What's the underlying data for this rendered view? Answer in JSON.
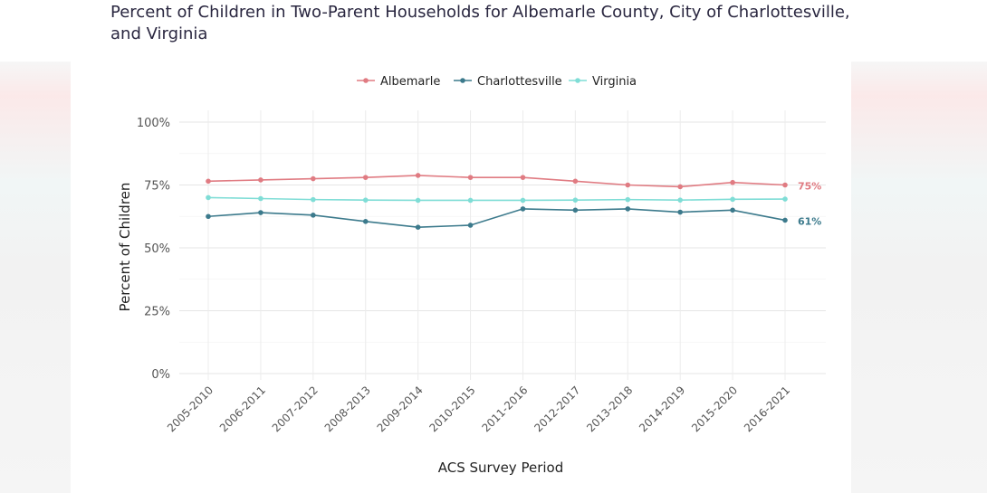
{
  "chart_data": {
    "type": "line",
    "title": "Percent of Children in Two-Parent Households for Albemarle County, City of Charlottesville, and Virginia",
    "xlabel": "ACS Survey Period",
    "ylabel": "Percent of Children",
    "categories": [
      "2005-2010",
      "2006-2011",
      "2007-2012",
      "2008-2013",
      "2009-2014",
      "2010-2015",
      "2011-2016",
      "2012-2017",
      "2013-2018",
      "2014-2019",
      "2015-2020",
      "2016-2021"
    ],
    "ylim": [
      0,
      100
    ],
    "yticks": [
      0,
      25,
      50,
      75,
      100
    ],
    "ytick_labels": [
      "0%",
      "25%",
      "50%",
      "75%",
      "100%"
    ],
    "grid": true,
    "legend_position": "top",
    "series": [
      {
        "name": "Albemarle",
        "color": "#e07b82",
        "values": [
          76.5,
          77,
          77.5,
          78,
          78.8,
          78,
          78,
          76.5,
          75,
          74.3,
          76,
          75
        ],
        "end_label": "75%"
      },
      {
        "name": "Charlottesville",
        "color": "#3c7a8c",
        "values": [
          62.5,
          64,
          63,
          60.5,
          58.2,
          59,
          65.5,
          65,
          65.5,
          64.2,
          65,
          61
        ],
        "end_label": "61%"
      },
      {
        "name": "Virginia",
        "color": "#7fddd6",
        "values": [
          70,
          69.6,
          69.2,
          69,
          68.9,
          68.9,
          68.9,
          69,
          69.2,
          69,
          69.3,
          69.4
        ],
        "end_label": ""
      }
    ]
  }
}
